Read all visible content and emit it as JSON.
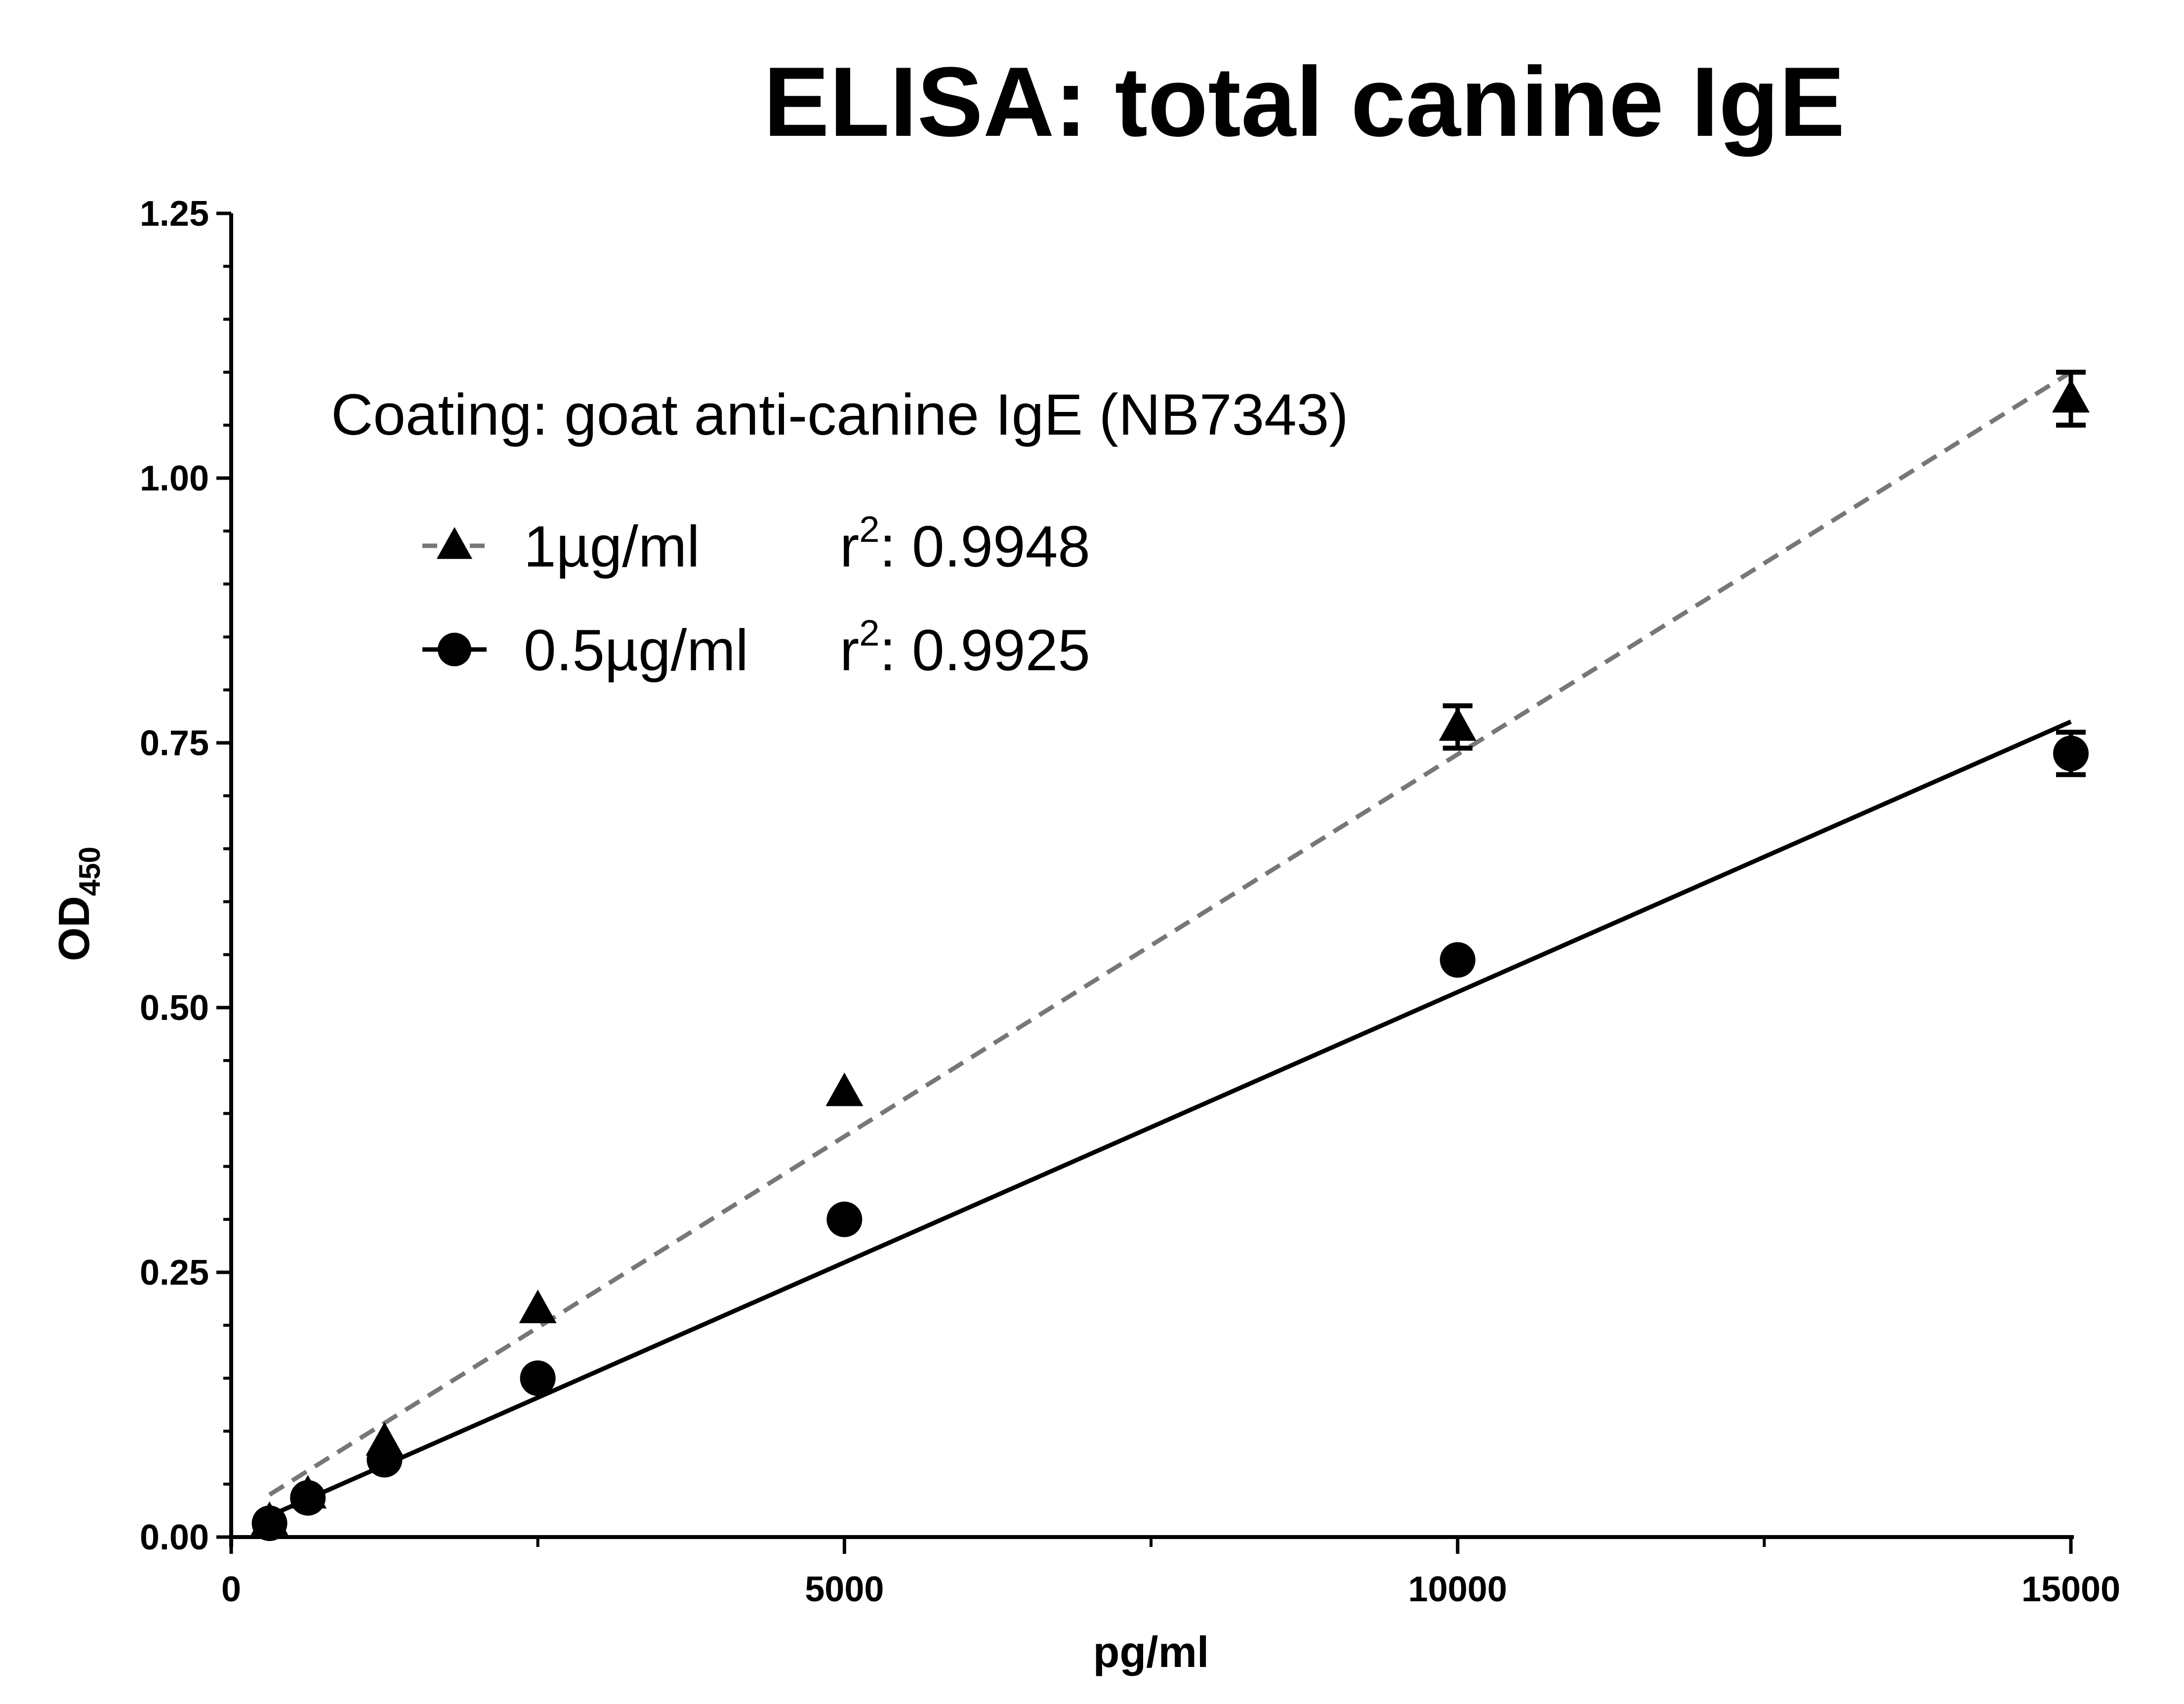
{
  "chart_data": {
    "type": "scatter",
    "title": "ELISA: total canine IgE",
    "annotation": "Coating: goat anti-canine IgE (NB7343)",
    "xlabel": "pg/ml",
    "ylabel": "OD",
    "ylabel_subscript": "450",
    "xlim": [
      0,
      15000
    ],
    "ylim": [
      0,
      1.25
    ],
    "x_ticks": [
      0,
      5000,
      10000,
      15000
    ],
    "x_tick_labels": [
      "0",
      "5000",
      "10000",
      "15000"
    ],
    "y_ticks": [
      0,
      0.25,
      0.5,
      0.75,
      1.0,
      1.25
    ],
    "y_tick_labels": [
      "0.00",
      "0.25",
      "0.50",
      "0.75",
      "1.00",
      "1.25"
    ],
    "grid": false,
    "legend_position": "top-left",
    "series": [
      {
        "name": "1µg/ml",
        "r2_label": "r",
        "r2_sup": "2",
        "r2_value": ": 0.9948",
        "marker": "triangle",
        "line_style": "dashed",
        "color": "#777777",
        "marker_color": "#000000",
        "x": [
          312.5,
          625,
          1250,
          2500,
          5000,
          10000,
          15000
        ],
        "y": [
          0.015,
          0.04,
          0.09,
          0.215,
          0.42,
          0.765,
          1.075
        ],
        "error": [
          0,
          0,
          0,
          0,
          0,
          0.02,
          0.025
        ],
        "fit": {
          "x": [
            312.5,
            15000
          ],
          "y": [
            0.04,
            1.1
          ]
        }
      },
      {
        "name": "0.5µg/ml",
        "r2_label": "r",
        "r2_sup": "2",
        "r2_value": ": 0.9925",
        "marker": "circle",
        "line_style": "solid",
        "color": "#000000",
        "marker_color": "#000000",
        "x": [
          312.5,
          625,
          1250,
          2500,
          5000,
          10000,
          15000
        ],
        "y": [
          0.013,
          0.037,
          0.073,
          0.15,
          0.3,
          0.545,
          0.74
        ],
        "error": [
          0,
          0,
          0,
          0,
          0,
          0,
          0.02
        ],
        "fit": {
          "x": [
            312.5,
            15000
          ],
          "y": [
            0.02,
            0.77
          ]
        }
      }
    ]
  }
}
